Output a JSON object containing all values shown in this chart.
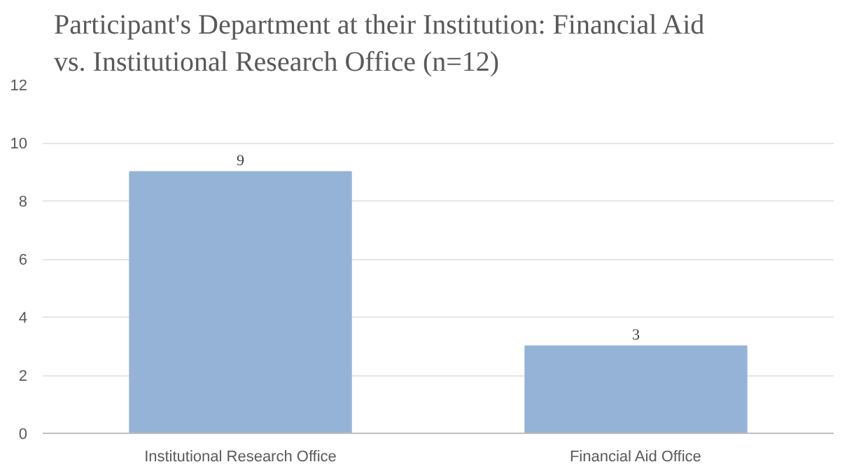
{
  "chart_data": {
    "type": "bar",
    "title": "Participant's Department at their Institution: Financial Aid vs. Institutional Research Office (n=12)",
    "categories": [
      "Institutional Research Office",
      "Financial Aid Office"
    ],
    "values": [
      9,
      3
    ],
    "color": "#95b3d7",
    "ylim": [
      0,
      12
    ],
    "yticks": [
      0,
      2,
      4,
      6,
      8,
      10,
      12
    ],
    "grid": "y",
    "data_labels": true
  }
}
